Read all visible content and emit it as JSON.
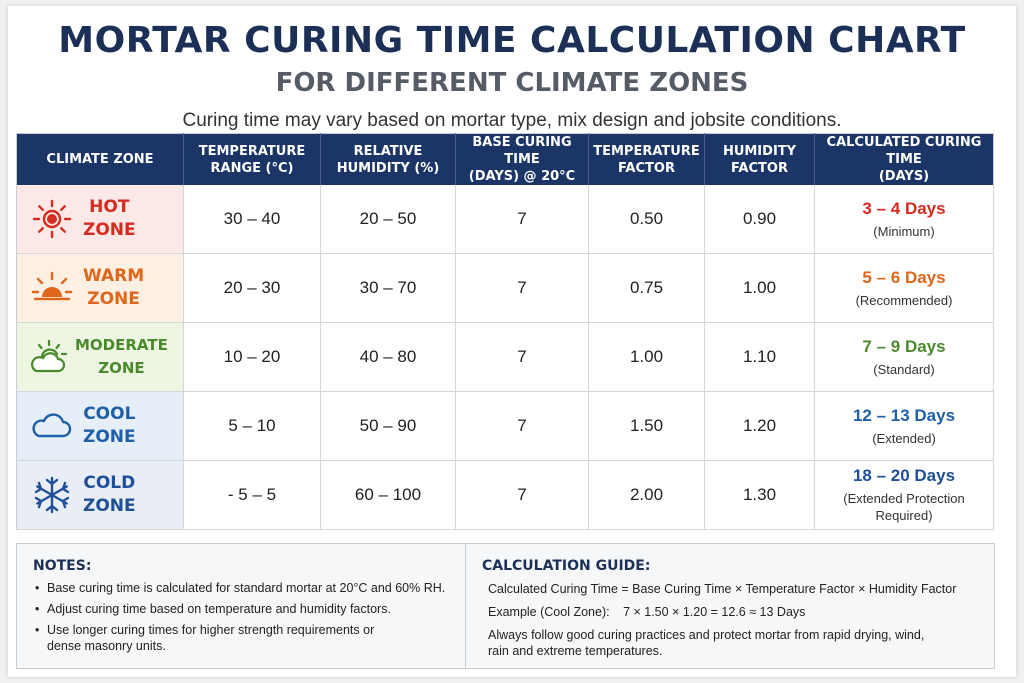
{
  "title": "MORTAR CURING TIME CALCULATION CHART",
  "subtitle": "FOR DIFFERENT CLIMATE ZONES",
  "caption": "Curing time may vary based on mortar type, mix design and jobsite conditions.",
  "table": {
    "headers": {
      "zone": "CLIMATE ZONE",
      "temp_line1": "TEMPERATURE",
      "temp_line2": "RANGE (°C)",
      "hum_line1": "RELATIVE",
      "hum_line2": "HUMIDITY (%)",
      "base_line1": "BASE CURING TIME",
      "base_line2": "(DAYS) @ 20°C",
      "tf_line1": "TEMPERATURE",
      "tf_line2": "FACTOR",
      "hf_line1": "HUMIDITY",
      "hf_line2": "FACTOR",
      "calc_line1": "CALCULATED CURING TIME",
      "calc_line2": "(DAYS)"
    },
    "rows": [
      {
        "zone_line1": "HOT",
        "zone_line2": "ZONE",
        "icon": "sun-icon",
        "color": "#d62b1f",
        "bg": "#fde8e8",
        "temp": "30 – 40",
        "humidity": "20 – 50",
        "base": "7",
        "temp_factor": "0.50",
        "hum_factor": "0.90",
        "result": "3 – 4 Days",
        "note": "(Minimum)"
      },
      {
        "zone_line1": "WARM",
        "zone_line2": "ZONE",
        "icon": "sunrise-icon",
        "color": "#e0661b",
        "bg": "#fdf0e3",
        "temp": "20 – 30",
        "humidity": "30 – 70",
        "base": "7",
        "temp_factor": "0.75",
        "hum_factor": "1.00",
        "result": "5 – 6 Days",
        "note": "(Recommended)"
      },
      {
        "zone_line1": "MODERATE",
        "zone_line2": "ZONE",
        "icon": "partly-cloudy-icon",
        "color": "#4a8a2c",
        "bg": "#eef5e3",
        "temp": "10 – 20",
        "humidity": "40 – 80",
        "base": "7",
        "temp_factor": "1.00",
        "hum_factor": "1.10",
        "result": "7 – 9 Days",
        "note": "(Standard)"
      },
      {
        "zone_line1": "COOL",
        "zone_line2": "ZONE",
        "icon": "cloud-icon",
        "color": "#1f5fa8",
        "bg": "#e6eef8",
        "temp": "5 – 10",
        "humidity": "50 – 90",
        "base": "7",
        "temp_factor": "1.50",
        "hum_factor": "1.20",
        "result": "12 – 13 Days",
        "note": "(Extended)"
      },
      {
        "zone_line1": "COLD",
        "zone_line2": "ZONE",
        "icon": "snowflake-icon",
        "color": "#1f4f96",
        "bg": "#e8edf6",
        "temp": "- 5 – 5",
        "humidity": "60 – 100",
        "base": "7",
        "temp_factor": "2.00",
        "hum_factor": "1.30",
        "result": "18 – 20 Days",
        "note": "(Extended Protection Required)"
      }
    ]
  },
  "notes": {
    "heading": "NOTES:",
    "items": [
      "Base curing time is calculated for standard mortar at 20°C and 60% RH.",
      "Adjust curing time based on temperature and humidity factors.",
      "Use longer curing times for higher strength requirements or dense masonry units."
    ]
  },
  "guide": {
    "heading": "CALCULATION GUIDE:",
    "formula": "Calculated Curing Time  =  Base Curing Time × Temperature Factor × Humidity Factor",
    "example_label": "Example (Cool Zone):",
    "example": "7  ×  1.50  ×  1.20  =  12.6  ≈  13 Days",
    "advice": "Always follow good curing practices and protect mortar from rapid drying, wind, rain and extreme temperatures."
  }
}
